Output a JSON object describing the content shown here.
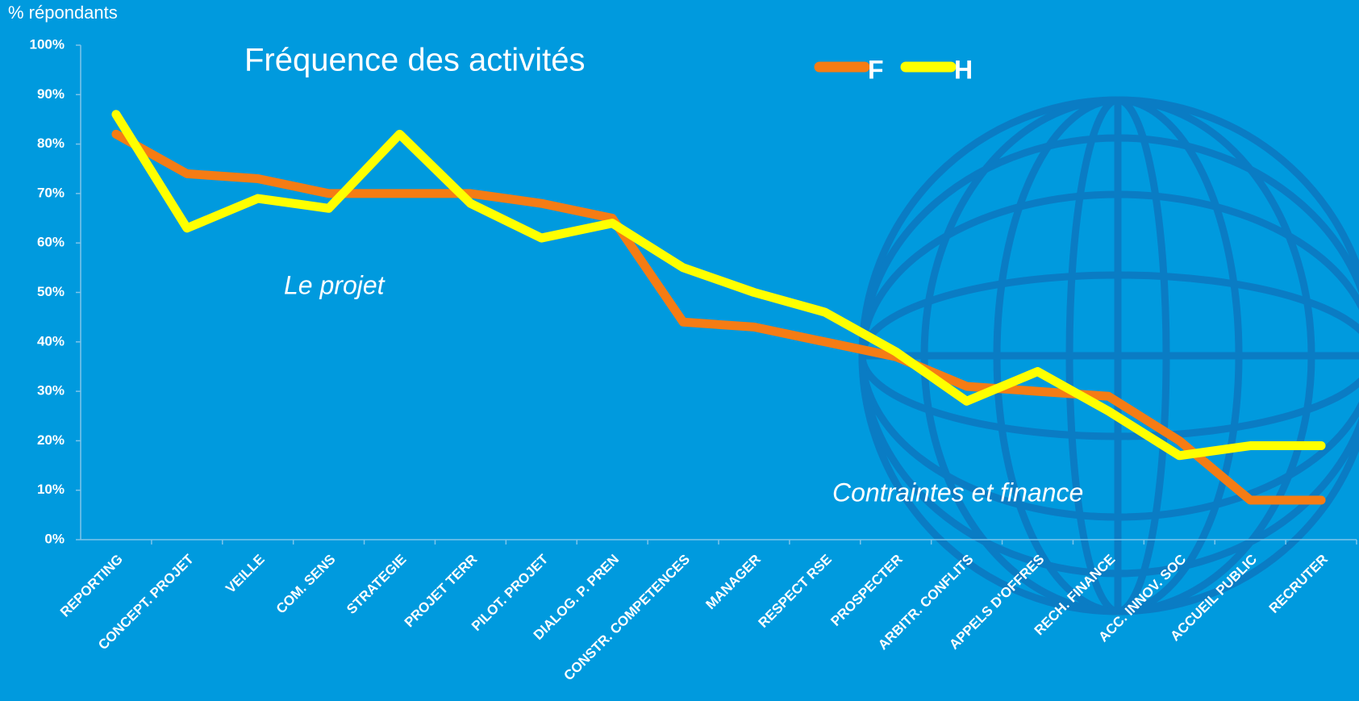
{
  "chart_data": {
    "type": "line",
    "title": "Fréquence des activités",
    "y_label": "% répondants",
    "annotations": [
      "Le projet",
      "Contraintes et finance"
    ],
    "categories": [
      "REPORTING",
      "CONCEPT. PROJET",
      "VEILLE",
      "COM. SENS",
      "STRATEGIE",
      "PROJET TERR",
      "PILOT. PROJET",
      "DIALOG. P. PREN",
      "CONSTR. COMPETENCES",
      "MANAGER",
      "RESPECT RSE",
      "PROSPECTER",
      "ARBITR. CONFLITS",
      "APPELS D'OFFRES",
      "RECH. FINANCE",
      "ACC. INNOV. SOC",
      "ACCUEIL PUBLIC",
      "RECRUTER"
    ],
    "series": [
      {
        "name": "F",
        "color": "#f57c14",
        "values": [
          82,
          74,
          73,
          70,
          70,
          70,
          68,
          65,
          44,
          43,
          40,
          37,
          31,
          30,
          29,
          20,
          8,
          8
        ]
      },
      {
        "name": "H",
        "color": "#ffff00",
        "values": [
          86,
          63,
          69,
          67,
          82,
          68,
          61,
          64,
          55,
          50,
          46,
          38,
          28,
          34,
          26,
          17,
          19,
          19
        ]
      }
    ],
    "ylim": [
      0,
      100
    ],
    "yticks": [
      {
        "value": 0,
        "label": "0%"
      },
      {
        "value": 10,
        "label": "10%"
      },
      {
        "value": 20,
        "label": "20%"
      },
      {
        "value": 30,
        "label": "30%"
      },
      {
        "value": 40,
        "label": "40%"
      },
      {
        "value": 50,
        "label": "50%"
      },
      {
        "value": 60,
        "label": "60%"
      },
      {
        "value": 70,
        "label": "70%"
      },
      {
        "value": 80,
        "label": "80%"
      },
      {
        "value": 90,
        "label": "90%"
      },
      {
        "value": 100,
        "label": "100%"
      }
    ],
    "legend": "top"
  }
}
